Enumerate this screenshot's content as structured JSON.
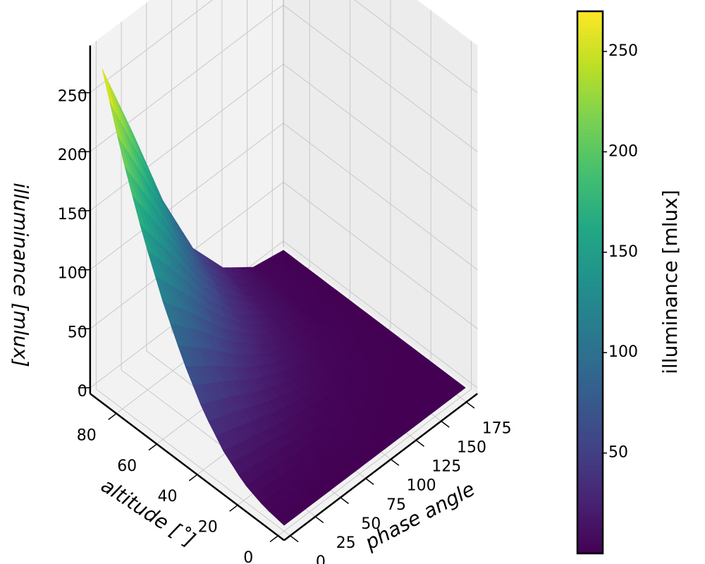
{
  "chart_data": {
    "type": "surface",
    "colormap": "viridis",
    "xlabel": "phase angle",
    "ylabel": "altitude [˚]",
    "zlabel": "illuminance [mlux]",
    "colorbar_label": "illuminance [mlux]",
    "xlim": [
      0,
      180
    ],
    "ylim": [
      0,
      90
    ],
    "zlim": [
      0,
      280
    ],
    "x_ticks": [
      "0",
      "25",
      "50",
      "75",
      "100",
      "125",
      "150",
      "175"
    ],
    "y_ticks": [
      "0",
      "20",
      "40",
      "60",
      "80"
    ],
    "z_ticks": [
      "0",
      "50",
      "100",
      "150",
      "200",
      "250"
    ],
    "colorbar_ticks": [
      "50",
      "100",
      "150",
      "200",
      "250"
    ],
    "colorbar_range": [
      0,
      270
    ],
    "peak": {
      "phase_angle": 0,
      "altitude": 90,
      "illuminance": 270
    },
    "surface_samples": {
      "altitude": [
        0,
        10,
        20,
        30,
        40,
        50,
        60,
        70,
        80,
        90
      ],
      "phase_angle": [
        0,
        30,
        60,
        90,
        120,
        150,
        180
      ],
      "illuminance": [
        [
          0,
          0,
          0,
          0,
          0,
          0,
          0
        ],
        [
          3,
          2,
          1,
          1,
          0,
          0,
          0
        ],
        [
          10,
          7,
          4,
          2,
          1,
          0,
          0
        ],
        [
          24,
          17,
          10,
          5,
          2,
          1,
          0
        ],
        [
          45,
          33,
          20,
          10,
          4,
          1,
          0
        ],
        [
          75,
          55,
          33,
          17,
          7,
          2,
          0
        ],
        [
          112,
          82,
          50,
          25,
          10,
          2,
          0
        ],
        [
          156,
          114,
          70,
          35,
          14,
          3,
          0
        ],
        [
          208,
          152,
          93,
          47,
          18,
          4,
          0
        ],
        [
          270,
          197,
          120,
          60,
          24,
          5,
          0
        ]
      ]
    },
    "grid": true
  }
}
